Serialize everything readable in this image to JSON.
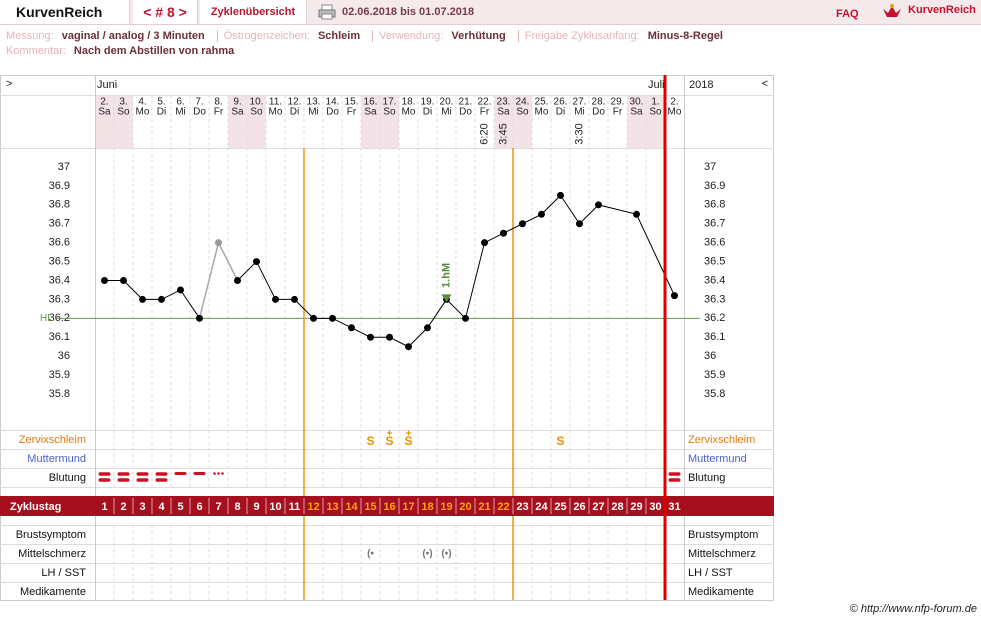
{
  "header": {
    "brand": "KurvenReich",
    "cycle": "< # 8 >",
    "overview": "Zyklenübersicht",
    "period": "02.06.2018 bis 01.07.2018",
    "faq": "FAQ",
    "logo": "KurvenReich"
  },
  "info": [
    {
      "label": "Messung:",
      "value": "vaginal / analog / 3 Minuten"
    },
    {
      "label": "Östrogenzeichen:",
      "value": "Schleim"
    },
    {
      "label": "Verwendung:",
      "value": "Verhütung"
    },
    {
      "label": "Freigabe Zyklusanfang:",
      "value": "Minus-8-Regel"
    }
  ],
  "comment": {
    "label": "Kommentar:",
    "value": "Nach dem Abstillen von rahma"
  },
  "chart_data": {
    "type": "line",
    "nav_prev": ">",
    "nav_next": "<",
    "year": "2018",
    "months": [
      {
        "cycle_day": 1,
        "label": "Juni"
      },
      {
        "cycle_day": 30,
        "label": "Juli"
      }
    ],
    "dates": [
      "2.",
      "3.",
      "4.",
      "5.",
      "6.",
      "7.",
      "8.",
      "9.",
      "10.",
      "11.",
      "12.",
      "13.",
      "14.",
      "15.",
      "16.",
      "17.",
      "18.",
      "19.",
      "20.",
      "21.",
      "22.",
      "23.",
      "24.",
      "25.",
      "26.",
      "27.",
      "28.",
      "29.",
      "30.",
      "1.",
      "2."
    ],
    "weekdays": [
      "Sa",
      "So",
      "Mo",
      "Di",
      "Mi",
      "Do",
      "Fr",
      "Sa",
      "So",
      "Mo",
      "Di",
      "Mi",
      "Do",
      "Fr",
      "Sa",
      "So",
      "Mo",
      "Di",
      "Mi",
      "Do",
      "Fr",
      "Sa",
      "So",
      "Mo",
      "Di",
      "Mi",
      "Do",
      "Fr",
      "Sa",
      "So",
      "Mo"
    ],
    "weekend": [
      "Sa",
      "So"
    ],
    "times": [
      {
        "cycle_day": 21,
        "label": "6:20"
      },
      {
        "cycle_day": 22,
        "label": "3:45"
      },
      {
        "cycle_day": 26,
        "label": "3:30"
      }
    ],
    "cycle_days": [
      1,
      2,
      3,
      4,
      5,
      6,
      7,
      8,
      9,
      10,
      11,
      12,
      13,
      14,
      15,
      16,
      17,
      18,
      19,
      20,
      21,
      22,
      23,
      24,
      25,
      26,
      27,
      28,
      29,
      30,
      31
    ],
    "x": [
      1,
      2,
      3,
      4,
      5,
      6,
      7,
      8,
      9,
      10,
      11,
      12,
      13,
      14,
      15,
      16,
      17,
      18,
      19,
      20,
      21,
      22,
      23,
      24,
      25,
      26,
      27,
      29,
      31
    ],
    "values": [
      36.4,
      36.4,
      36.3,
      36.3,
      36.35,
      36.2,
      36.6,
      36.4,
      36.5,
      36.3,
      36.3,
      36.2,
      36.2,
      36.15,
      36.1,
      36.1,
      36.05,
      36.15,
      36.3,
      36.2,
      36.6,
      36.65,
      36.7,
      36.75,
      36.85,
      36.7,
      36.8,
      36.75,
      36.32
    ],
    "excluded_days": [
      7
    ],
    "ylim": [
      35.8,
      37
    ],
    "yticks": [
      37,
      36.9,
      36.8,
      36.7,
      36.6,
      36.5,
      36.4,
      36.3,
      36.2,
      36.1,
      36,
      35.9,
      35.8
    ],
    "coverline": 36.2,
    "coverline_label": "HL",
    "coverline_color": "#6a9a4a",
    "shift": {
      "cycle_day": 19,
      "label": "1.hM"
    },
    "fertile_start": 12,
    "fertile_end": 22,
    "cycle_end": 31,
    "row_labels": {
      "cervix": "Zervixschleim",
      "cervix_os": "Muttermund",
      "bleeding": "Blutung",
      "cycle_day": "Zyklustag",
      "breast": "Brustsymptom",
      "pain": "Mittelschmerz",
      "lh": "LH / SST",
      "meds": "Medikamente"
    },
    "cervix": [
      {
        "cycle_day": 15,
        "label": "S",
        "plus": false
      },
      {
        "cycle_day": 16,
        "label": "S",
        "plus": true
      },
      {
        "cycle_day": 17,
        "label": "S",
        "plus": true
      },
      {
        "cycle_day": 25,
        "label": "S",
        "plus": false
      }
    ],
    "bleeding": [
      {
        "cycle_day": 1,
        "level": 3
      },
      {
        "cycle_day": 2,
        "level": 3
      },
      {
        "cycle_day": 3,
        "level": 3
      },
      {
        "cycle_day": 4,
        "level": 3
      },
      {
        "cycle_day": 5,
        "level": 2
      },
      {
        "cycle_day": 6,
        "level": 2
      },
      {
        "cycle_day": 7,
        "level": 1
      },
      {
        "cycle_day": 31,
        "level": 3
      }
    ],
    "pain": [
      {
        "cycle_day": 15,
        "label": "(•"
      },
      {
        "cycle_day": 18,
        "label": "(•)"
      },
      {
        "cycle_day": 19,
        "label": "(•)"
      }
    ]
  },
  "footer": "© http://www.nfp-forum.de"
}
